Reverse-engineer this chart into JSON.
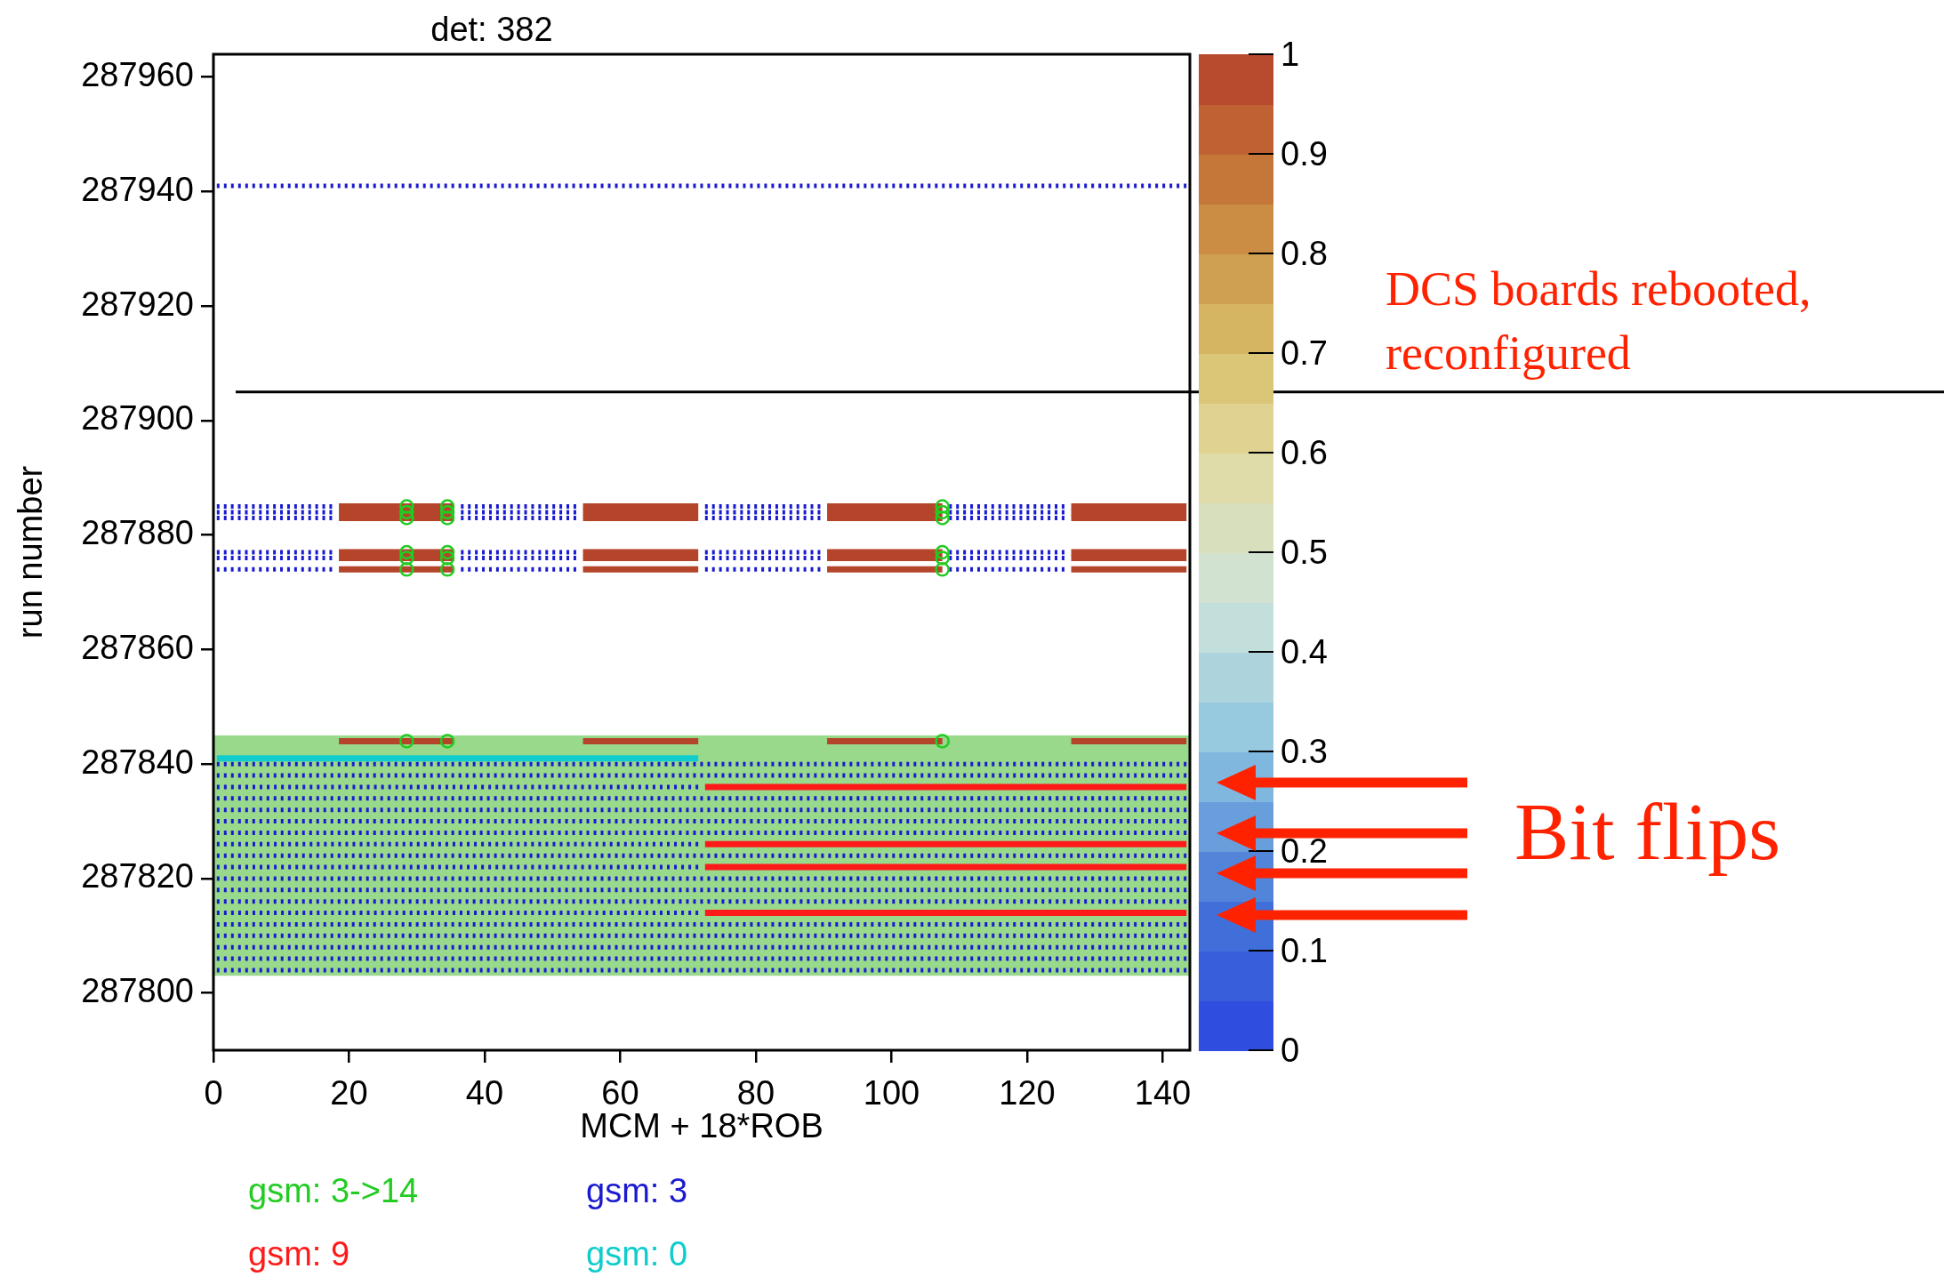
{
  "chart_data": {
    "type": "line",
    "title": "det: 382",
    "xlabel": "MCM + 18*ROB",
    "ylabel": "run number",
    "xlim": [
      0,
      144
    ],
    "ylim": [
      287790,
      287964
    ],
    "xticks": [
      0,
      20,
      40,
      60,
      80,
      100,
      120,
      140
    ],
    "yticks": [
      287800,
      287820,
      287840,
      287860,
      287880,
      287900,
      287920,
      287940,
      287960
    ],
    "clim": [
      0,
      1
    ],
    "cticks": [
      0,
      0.1,
      0.2,
      0.3,
      0.4,
      0.5,
      0.6,
      0.7,
      0.8,
      0.9,
      1
    ],
    "legend": "bottom",
    "line_style": "dotted",
    "bands": [
      {
        "axis": "y",
        "from": 287803,
        "to": 287845,
        "color": "#99d98c"
      }
    ],
    "ref_lines": [
      {
        "axis": "y",
        "value": 287905,
        "label": "DCS boards rebooted, reconfigured",
        "color": "#000000"
      }
    ],
    "annotations": [
      "Bit flips"
    ],
    "series": [
      {
        "name": "gsm: 3->14",
        "type": "scatter",
        "marker": "circle",
        "color": "#22cc22",
        "x": [
          28.5,
          34.5,
          107.5,
          28.5,
          34.5,
          107.5,
          28.5,
          34.5,
          107.5,
          28.5,
          34.5,
          107.5,
          28.5,
          34.5,
          107.5,
          28.5,
          34.5,
          107.5,
          28.5,
          34.5,
          107.5
        ],
        "values": [
          287885,
          287885,
          287885,
          287884,
          287884,
          287884,
          287883,
          287883,
          287883,
          287877,
          287877,
          287877,
          287876,
          287876,
          287876,
          287874,
          287874,
          287874,
          287844,
          287844,
          287844
        ]
      },
      {
        "name": "gsm: 3",
        "color": "#1a1ad0",
        "x": [
          0.5,
          143.5
        ],
        "values": [
          287941,
          287941
        ]
      },
      {
        "name": "gsm: 9",
        "line_style": "solid",
        "color": "#ff1a1a",
        "x": [
          72.5,
          143.5
        ],
        "values": [
          287836,
          287836
        ]
      },
      {
        "name": "gsm: 0",
        "line_style": "solid",
        "color": "#11cccc",
        "x": [
          0.5,
          71.5
        ],
        "values": [
          287841,
          287841
        ]
      },
      {
        "line_style": "solid",
        "color": "#ff1a1a",
        "x": [
          72.5,
          143.5
        ],
        "values": [
          287826,
          287826
        ]
      },
      {
        "line_style": "solid",
        "color": "#ff1a1a",
        "x": [
          72.5,
          143.5
        ],
        "values": [
          287822,
          287822
        ]
      },
      {
        "line_style": "solid",
        "color": "#ff1a1a",
        "x": [
          72.5,
          143.5
        ],
        "values": [
          287814,
          287814
        ]
      },
      {
        "color": "#1a1ad0",
        "x": [
          0.5,
          17.5
        ],
        "values": [
          287885,
          287885
        ]
      },
      {
        "color": "#1a1ad0",
        "x": [
          36.5,
          53.5
        ],
        "values": [
          287885,
          287885
        ]
      },
      {
        "color": "#1a1ad0",
        "x": [
          72.5,
          89.5
        ],
        "values": [
          287885,
          287885
        ]
      },
      {
        "color": "#1a1ad0",
        "x": [
          108.5,
          125.5
        ],
        "values": [
          287885,
          287885
        ]
      },
      {
        "color": "#1a1ad0",
        "x": [
          0.5,
          17.5
        ],
        "values": [
          287884,
          287884
        ]
      },
      {
        "color": "#1a1ad0",
        "x": [
          36.5,
          53.5
        ],
        "values": [
          287884,
          287884
        ]
      },
      {
        "color": "#1a1ad0",
        "x": [
          72.5,
          89.5
        ],
        "values": [
          287884,
          287884
        ]
      },
      {
        "color": "#1a1ad0",
        "x": [
          108.5,
          125.5
        ],
        "values": [
          287884,
          287884
        ]
      },
      {
        "color": "#1a1ad0",
        "x": [
          0.5,
          17.5
        ],
        "values": [
          287883,
          287883
        ]
      },
      {
        "color": "#1a1ad0",
        "x": [
          36.5,
          53.5
        ],
        "values": [
          287883,
          287883
        ]
      },
      {
        "color": "#1a1ad0",
        "x": [
          72.5,
          89.5
        ],
        "values": [
          287883,
          287883
        ]
      },
      {
        "color": "#1a1ad0",
        "x": [
          108.5,
          125.5
        ],
        "values": [
          287883,
          287883
        ]
      },
      {
        "color": "#1a1ad0",
        "x": [
          0.5,
          17.5
        ],
        "values": [
          287877,
          287877
        ]
      },
      {
        "color": "#1a1ad0",
        "x": [
          36.5,
          53.5
        ],
        "values": [
          287877,
          287877
        ]
      },
      {
        "color": "#1a1ad0",
        "x": [
          72.5,
          89.5
        ],
        "values": [
          287877,
          287877
        ]
      },
      {
        "color": "#1a1ad0",
        "x": [
          108.5,
          125.5
        ],
        "values": [
          287877,
          287877
        ]
      },
      {
        "color": "#1a1ad0",
        "x": [
          0.5,
          17.5
        ],
        "values": [
          287876,
          287876
        ]
      },
      {
        "color": "#1a1ad0",
        "x": [
          36.5,
          53.5
        ],
        "values": [
          287876,
          287876
        ]
      },
      {
        "color": "#1a1ad0",
        "x": [
          72.5,
          89.5
        ],
        "values": [
          287876,
          287876
        ]
      },
      {
        "color": "#1a1ad0",
        "x": [
          108.5,
          125.5
        ],
        "values": [
          287876,
          287876
        ]
      },
      {
        "color": "#1a1ad0",
        "x": [
          0.5,
          17.5
        ],
        "values": [
          287874,
          287874
        ]
      },
      {
        "color": "#1a1ad0",
        "x": [
          36.5,
          53.5
        ],
        "values": [
          287874,
          287874
        ]
      },
      {
        "color": "#1a1ad0",
        "x": [
          72.5,
          89.5
        ],
        "values": [
          287874,
          287874
        ]
      },
      {
        "color": "#1a1ad0",
        "x": [
          108.5,
          125.5
        ],
        "values": [
          287874,
          287874
        ]
      },
      {
        "color": "#1a1ad0",
        "x": [
          0.5,
          143.5
        ],
        "values": [
          287804,
          287804
        ]
      },
      {
        "color": "#1a1ad0",
        "x": [
          0.5,
          143.5
        ],
        "values": [
          287806,
          287806
        ]
      },
      {
        "color": "#1a1ad0",
        "x": [
          0.5,
          143.5
        ],
        "values": [
          287808,
          287808
        ]
      },
      {
        "color": "#1a1ad0",
        "x": [
          0.5,
          143.5
        ],
        "values": [
          287810,
          287810
        ]
      },
      {
        "color": "#1a1ad0",
        "x": [
          0.5,
          143.5
        ],
        "values": [
          287812,
          287812
        ]
      },
      {
        "color": "#1a1ad0",
        "x": [
          0.5,
          71.5
        ],
        "values": [
          287814,
          287814
        ]
      },
      {
        "color": "#1a1ad0",
        "x": [
          0.5,
          143.5
        ],
        "values": [
          287816,
          287816
        ]
      },
      {
        "color": "#1a1ad0",
        "x": [
          0.5,
          143.5
        ],
        "values": [
          287818,
          287818
        ]
      },
      {
        "color": "#1a1ad0",
        "x": [
          0.5,
          143.5
        ],
        "values": [
          287820,
          287820
        ]
      },
      {
        "color": "#1a1ad0",
        "x": [
          0.5,
          71.5
        ],
        "values": [
          287822,
          287822
        ]
      },
      {
        "color": "#1a1ad0",
        "x": [
          0.5,
          143.5
        ],
        "values": [
          287824,
          287824
        ]
      },
      {
        "color": "#1a1ad0",
        "x": [
          0.5,
          71.5
        ],
        "values": [
          287826,
          287826
        ]
      },
      {
        "color": "#1a1ad0",
        "x": [
          0.5,
          143.5
        ],
        "values": [
          287828,
          287828
        ]
      },
      {
        "color": "#1a1ad0",
        "x": [
          0.5,
          143.5
        ],
        "values": [
          287830,
          287830
        ]
      },
      {
        "color": "#1a1ad0",
        "x": [
          0.5,
          143.5
        ],
        "values": [
          287832,
          287832
        ]
      },
      {
        "color": "#1a1ad0",
        "x": [
          0.5,
          143.5
        ],
        "values": [
          287834,
          287834
        ]
      },
      {
        "color": "#1a1ad0",
        "x": [
          0.5,
          71.5
        ],
        "values": [
          287836,
          287836
        ]
      },
      {
        "color": "#1a1ad0",
        "x": [
          0.5,
          143.5
        ],
        "values": [
          287838,
          287838
        ]
      },
      {
        "color": "#1a1ad0",
        "x": [
          0.5,
          143.5
        ],
        "values": [
          287840,
          287840
        ]
      },
      {
        "line_style": "solid",
        "color": "#b5452a",
        "x": [
          18.5,
          35.5
        ],
        "values": [
          287885,
          287885
        ]
      },
      {
        "line_style": "solid",
        "color": "#b5452a",
        "x": [
          54.5,
          71.5
        ],
        "values": [
          287885,
          287885
        ]
      },
      {
        "line_style": "solid",
        "color": "#b5452a",
        "x": [
          90.5,
          107.5
        ],
        "values": [
          287885,
          287885
        ]
      },
      {
        "line_style": "solid",
        "color": "#b5452a",
        "x": [
          126.5,
          143.5
        ],
        "values": [
          287885,
          287885
        ]
      },
      {
        "line_style": "solid",
        "color": "#b5452a",
        "x": [
          18.5,
          35.5
        ],
        "values": [
          287884,
          287884
        ]
      },
      {
        "line_style": "solid",
        "color": "#b5452a",
        "x": [
          54.5,
          71.5
        ],
        "values": [
          287884,
          287884
        ]
      },
      {
        "line_style": "solid",
        "color": "#b5452a",
        "x": [
          90.5,
          107.5
        ],
        "values": [
          287884,
          287884
        ]
      },
      {
        "line_style": "solid",
        "color": "#b5452a",
        "x": [
          126.5,
          143.5
        ],
        "values": [
          287884,
          287884
        ]
      },
      {
        "line_style": "solid",
        "color": "#b5452a",
        "x": [
          18.5,
          35.5
        ],
        "values": [
          287883,
          287883
        ]
      },
      {
        "line_style": "solid",
        "color": "#b5452a",
        "x": [
          54.5,
          71.5
        ],
        "values": [
          287883,
          287883
        ]
      },
      {
        "line_style": "solid",
        "color": "#b5452a",
        "x": [
          90.5,
          107.5
        ],
        "values": [
          287883,
          287883
        ]
      },
      {
        "line_style": "solid",
        "color": "#b5452a",
        "x": [
          126.5,
          143.5
        ],
        "values": [
          287883,
          287883
        ]
      },
      {
        "line_style": "solid",
        "color": "#b5452a",
        "x": [
          18.5,
          35.5
        ],
        "values": [
          287877,
          287877
        ]
      },
      {
        "line_style": "solid",
        "color": "#b5452a",
        "x": [
          54.5,
          71.5
        ],
        "values": [
          287877,
          287877
        ]
      },
      {
        "line_style": "solid",
        "color": "#b5452a",
        "x": [
          90.5,
          107.5
        ],
        "values": [
          287877,
          287877
        ]
      },
      {
        "line_style": "solid",
        "color": "#b5452a",
        "x": [
          126.5,
          143.5
        ],
        "values": [
          287877,
          287877
        ]
      },
      {
        "line_style": "solid",
        "color": "#b5452a",
        "x": [
          18.5,
          35.5
        ],
        "values": [
          287876,
          287876
        ]
      },
      {
        "line_style": "solid",
        "color": "#b5452a",
        "x": [
          54.5,
          71.5
        ],
        "values": [
          287876,
          287876
        ]
      },
      {
        "line_style": "solid",
        "color": "#b5452a",
        "x": [
          90.5,
          107.5
        ],
        "values": [
          287876,
          287876
        ]
      },
      {
        "line_style": "solid",
        "color": "#b5452a",
        "x": [
          126.5,
          143.5
        ],
        "values": [
          287876,
          287876
        ]
      },
      {
        "line_style": "solid",
        "color": "#b5452a",
        "x": [
          18.5,
          35.5
        ],
        "values": [
          287874,
          287874
        ]
      },
      {
        "line_style": "solid",
        "color": "#b5452a",
        "x": [
          54.5,
          71.5
        ],
        "values": [
          287874,
          287874
        ]
      },
      {
        "line_style": "solid",
        "color": "#b5452a",
        "x": [
          90.5,
          107.5
        ],
        "values": [
          287874,
          287874
        ]
      },
      {
        "line_style": "solid",
        "color": "#b5452a",
        "x": [
          126.5,
          143.5
        ],
        "values": [
          287874,
          287874
        ]
      },
      {
        "line_style": "solid",
        "color": "#b5452a",
        "x": [
          18.5,
          35.5
        ],
        "values": [
          287844,
          287844
        ]
      },
      {
        "line_style": "solid",
        "color": "#b5452a",
        "x": [
          54.5,
          71.5
        ],
        "values": [
          287844,
          287844
        ]
      },
      {
        "line_style": "solid",
        "color": "#b5452a",
        "x": [
          90.5,
          107.5
        ],
        "values": [
          287844,
          287844
        ]
      },
      {
        "line_style": "solid",
        "color": "#b5452a",
        "x": [
          126.5,
          143.5
        ],
        "values": [
          287844,
          287844
        ]
      }
    ]
  }
}
